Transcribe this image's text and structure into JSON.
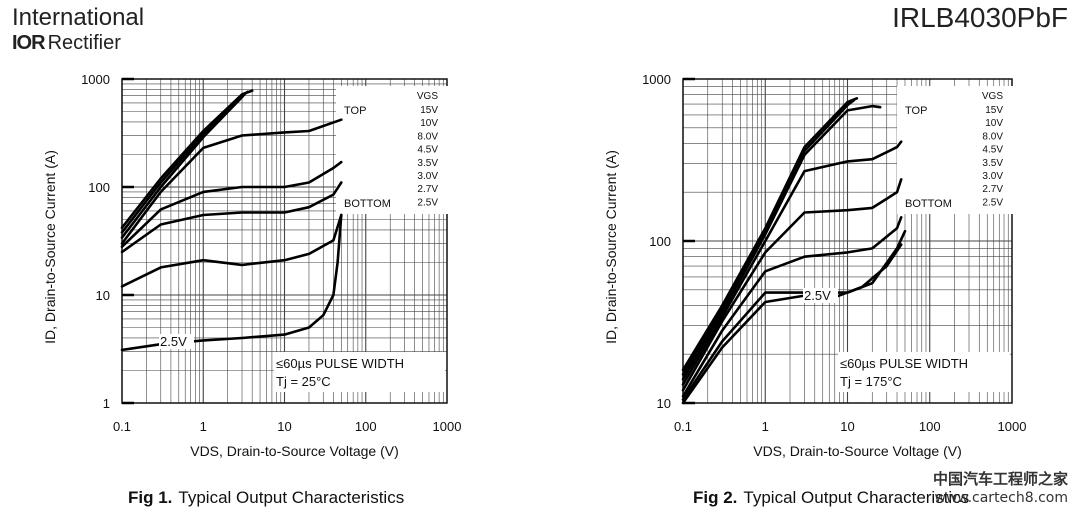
{
  "header": {
    "logo_line1": "International",
    "logo_mark": "IOR",
    "logo_line2": "Rectifier",
    "part_number": "IRLB4030PbF"
  },
  "watermark": {
    "line1": "中国汽车工程师之家",
    "line2": "www.cartech8.com"
  },
  "chart_data": [
    {
      "type": "line",
      "caption_label": "Fig 1.",
      "caption_text": "Typical Output Characteristics",
      "xlabel": "VDS, Drain-to-Source Voltage (V)",
      "ylabel": "ID, Drain-to-Source Current (A)",
      "x_scale": "log",
      "y_scale": "log",
      "xlim": [
        0.1,
        1000
      ],
      "ylim": [
        1,
        1000
      ],
      "x_ticks": [
        "0.1",
        "1",
        "10",
        "100",
        "1000"
      ],
      "y_ticks": [
        "1",
        "10",
        "100",
        "1000"
      ],
      "grid": true,
      "legend_title": "VGS",
      "legend_top_label": "TOP",
      "legend_bottom_label": "BOTTOM",
      "legend_values": [
        "15V",
        "10V",
        "8.0V",
        "4.5V",
        "3.5V",
        "3.0V",
        "2.7V",
        "2.5V"
      ],
      "annotation_pulse": "≤60µs PULSE WIDTH",
      "annotation_temp": "Tj = 25°C",
      "curve_label": "2.5V",
      "series": [
        {
          "values": [
            [
              0.1,
              42
            ],
            [
              0.3,
              120
            ],
            [
              1,
              330
            ],
            [
              3,
              720
            ],
            [
              4,
              780
            ]
          ]
        },
        {
          "values": [
            [
              0.1,
              38
            ],
            [
              0.3,
              110
            ],
            [
              1,
              310
            ],
            [
              3,
              700
            ],
            [
              3.5,
              760
            ]
          ]
        },
        {
          "values": [
            [
              0.1,
              34
            ],
            [
              0.3,
              100
            ],
            [
              1,
              290
            ],
            [
              3,
              680
            ],
            [
              3.2,
              720
            ]
          ]
        },
        {
          "values": [
            [
              0.1,
              30
            ],
            [
              0.3,
              90
            ],
            [
              1,
              230
            ],
            [
              3,
              300
            ],
            [
              10,
              320
            ],
            [
              20,
              330
            ],
            [
              50,
              420
            ]
          ]
        },
        {
          "values": [
            [
              0.1,
              28
            ],
            [
              0.3,
              62
            ],
            [
              1,
              90
            ],
            [
              3,
              100
            ],
            [
              10,
              100
            ],
            [
              20,
              110
            ],
            [
              40,
              150
            ],
            [
              50,
              170
            ]
          ]
        },
        {
          "values": [
            [
              0.1,
              25
            ],
            [
              0.3,
              45
            ],
            [
              1,
              55
            ],
            [
              3,
              58
            ],
            [
              10,
              58
            ],
            [
              20,
              65
            ],
            [
              40,
              85
            ],
            [
              50,
              110
            ]
          ]
        },
        {
          "values": [
            [
              0.1,
              12
            ],
            [
              0.3,
              18
            ],
            [
              1,
              21
            ],
            [
              3,
              19
            ],
            [
              10,
              21
            ],
            [
              20,
              24
            ],
            [
              40,
              32
            ],
            [
              50,
              55
            ]
          ]
        },
        {
          "values": [
            [
              0.1,
              3.1
            ],
            [
              0.3,
              3.5
            ],
            [
              1,
              3.8
            ],
            [
              3,
              4.0
            ],
            [
              10,
              4.3
            ],
            [
              20,
              5.0
            ],
            [
              30,
              6.5
            ],
            [
              40,
              10
            ],
            [
              45,
              20
            ],
            [
              50,
              55
            ]
          ]
        }
      ]
    },
    {
      "type": "line",
      "caption_label": "Fig 2.",
      "caption_text": "Typical Output Characteristics",
      "xlabel": "VDS, Drain-to-Source Voltage (V)",
      "ylabel": "ID, Drain-to-Source Current (A)",
      "x_scale": "log",
      "y_scale": "log",
      "xlim": [
        0.1,
        1000
      ],
      "ylim": [
        10,
        1000
      ],
      "x_ticks": [
        "0.1",
        "1",
        "10",
        "100",
        "1000"
      ],
      "y_ticks": [
        "10",
        "100",
        "1000"
      ],
      "grid": true,
      "legend_title": "VGS",
      "legend_top_label": "TOP",
      "legend_bottom_label": "BOTTOM",
      "legend_values": [
        "15V",
        "10V",
        "8.0V",
        "4.5V",
        "3.5V",
        "3.0V",
        "2.7V",
        "2.5V"
      ],
      "annotation_pulse": "≤60µs PULSE WIDTH",
      "annotation_temp": "Tj = 175°C",
      "curve_label": "2.5V",
      "series": [
        {
          "values": [
            [
              0.1,
              16
            ],
            [
              0.3,
              40
            ],
            [
              1,
              120
            ],
            [
              3,
              380
            ],
            [
              10,
              720
            ],
            [
              13,
              760
            ]
          ]
        },
        {
          "values": [
            [
              0.1,
              15
            ],
            [
              0.3,
              38
            ],
            [
              1,
              115
            ],
            [
              3,
              360
            ],
            [
              10,
              690
            ],
            [
              12,
              740
            ]
          ]
        },
        {
          "values": [
            [
              0.1,
              14
            ],
            [
              0.3,
              36
            ],
            [
              1,
              110
            ],
            [
              3,
              340
            ],
            [
              10,
              640
            ],
            [
              20,
              680
            ],
            [
              25,
              670
            ]
          ]
        },
        {
          "values": [
            [
              0.1,
              13
            ],
            [
              0.3,
              34
            ],
            [
              1,
              100
            ],
            [
              3,
              270
            ],
            [
              10,
              310
            ],
            [
              20,
              320
            ],
            [
              40,
              380
            ],
            [
              45,
              410
            ]
          ]
        },
        {
          "values": [
            [
              0.1,
              12
            ],
            [
              0.3,
              32
            ],
            [
              1,
              85
            ],
            [
              3,
              150
            ],
            [
              10,
              155
            ],
            [
              20,
              160
            ],
            [
              40,
              200
            ],
            [
              45,
              240
            ]
          ]
        },
        {
          "values": [
            [
              0.1,
              11
            ],
            [
              0.3,
              28
            ],
            [
              1,
              65
            ],
            [
              3,
              80
            ],
            [
              10,
              85
            ],
            [
              20,
              90
            ],
            [
              40,
              120
            ],
            [
              45,
              140
            ]
          ]
        },
        {
          "values": [
            [
              0.1,
              10.5
            ],
            [
              0.3,
              24
            ],
            [
              1,
              48
            ],
            [
              3,
              48
            ],
            [
              10,
              48
            ],
            [
              20,
              55
            ],
            [
              40,
              90
            ],
            [
              50,
              115
            ]
          ]
        },
        {
          "values": [
            [
              0.1,
              10
            ],
            [
              0.3,
              22
            ],
            [
              1,
              42
            ],
            [
              3,
              46
            ],
            [
              7,
              45
            ],
            [
              15,
              52
            ],
            [
              30,
              70
            ],
            [
              45,
              95
            ]
          ]
        }
      ]
    }
  ]
}
